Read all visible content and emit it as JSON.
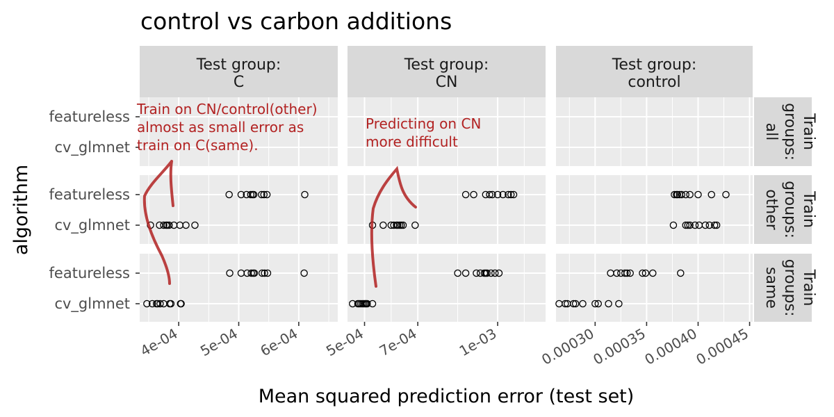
{
  "chart_data": {
    "type": "scatter",
    "title": "control vs carbon additions",
    "xlabel": "Mean squared prediction error (test set)",
    "ylabel": "algorithm",
    "y_categories": [
      "featureless",
      "cv_glmnet"
    ],
    "facet_rows": [
      {
        "label": "Train groups: all"
      },
      {
        "label": "Train groups: other"
      },
      {
        "label": "Train groups: same"
      }
    ],
    "facet_cols": [
      {
        "label": "Test group: C",
        "xlim": [
          0.000335,
          0.000665
        ],
        "ticks": [
          0.0004,
          0.0005,
          0.0006
        ],
        "tick_labels": [
          "4e-04",
          "5e-04",
          "6e-04"
        ],
        "data": {
          "other": {
            "featureless": [
              0.000484,
              0.000504,
              0.000513,
              0.00052,
              0.000523,
              0.000525,
              0.000538,
              0.000542,
              0.000547,
              0.00061
            ],
            "cv_glmnet": [
              0.000353,
              0.000368,
              0.000375,
              0.000379,
              0.000381,
              0.000384,
              0.000392,
              0.000402,
              0.000412,
              0.000427
            ]
          },
          "same": {
            "featureless": [
              0.000485,
              0.000504,
              0.000514,
              0.000521,
              0.000524,
              0.000526,
              0.000539,
              0.000543,
              0.000548,
              0.000609
            ],
            "cv_glmnet": [
              0.000347,
              0.000356,
              0.000363,
              0.000365,
              0.000369,
              0.000375,
              0.000385,
              0.000387,
              0.000403,
              0.000404
            ]
          }
        }
      },
      {
        "label": "Test group: CN",
        "xlim": [
          0.000436,
          0.00118
        ],
        "ticks": [
          0.0005,
          0.0007,
          0.001
        ],
        "tick_labels": [
          "5e-04",
          "7e-04",
          "1e-03"
        ],
        "data": {
          "other": {
            "featureless": [
              0.00088,
              0.00091,
              0.000955,
              0.00097,
              0.00098,
              0.001,
              0.00102,
              0.00104,
              0.00105,
              0.00106
            ],
            "cv_glmnet": [
              0.00053,
              0.00057,
              0.0006,
              0.00061,
              0.00062,
              0.000625,
              0.000632,
              0.000638,
              0.000645,
              0.00069
            ]
          },
          "same": {
            "featureless": [
              0.00085,
              0.00088,
              0.00092,
              0.000935,
              0.00095,
              0.000955,
              0.00096,
              0.000975,
              0.00099,
              0.001005
            ],
            "cv_glmnet": [
              0.000455,
              0.000475,
              0.00048,
              0.000486,
              0.000492,
              0.000497,
              0.000502,
              0.000506,
              0.00051,
              0.00053
            ]
          }
        }
      },
      {
        "label": "Test group: control",
        "xlim": [
          0.000262,
          0.000453
        ],
        "ticks": [
          0.0003,
          0.00035,
          0.0004,
          0.00045
        ],
        "tick_labels": [
          "0.00030",
          "0.00035",
          "0.00040",
          "0.00045"
        ],
        "data": {
          "other": {
            "featureless": [
              0.000377,
              0.000379,
              0.00038,
              0.000382,
              0.000384,
              0.000388,
              0.000392,
              0.0004,
              0.000413,
              0.000427
            ],
            "cv_glmnet": [
              0.000376,
              0.000388,
              0.00039,
              0.000392,
              0.000397,
              0.000401,
              0.000407,
              0.000411,
              0.000416,
              0.000418
            ]
          },
          "same": {
            "featureless": [
              0.000315,
              0.000321,
              0.000325,
              0.000329,
              0.000331,
              0.000334,
              0.000346,
              0.000349,
              0.000356,
              0.000383
            ],
            "cv_glmnet": [
              0.000265,
              0.000271,
              0.000273,
              0.000279,
              0.000281,
              0.000288,
              0.0003,
              0.000303,
              0.000313,
              0.000323
            ]
          }
        }
      }
    ],
    "grid": true,
    "legend": "none",
    "annotations": [
      {
        "text": [
          "Train on CN/control(other)",
          "almost as small error as",
          "train on C(same)."
        ],
        "color": "#b22222"
      },
      {
        "text": [
          "Predicting on CN",
          "more difficult"
        ],
        "color": "#b22222"
      }
    ]
  },
  "colors": {
    "panel_bg": "#ebebeb",
    "strip_bg": "#d9d9d9",
    "grid": "#ffffff",
    "point": "#000000",
    "annotation": "#b22222"
  }
}
